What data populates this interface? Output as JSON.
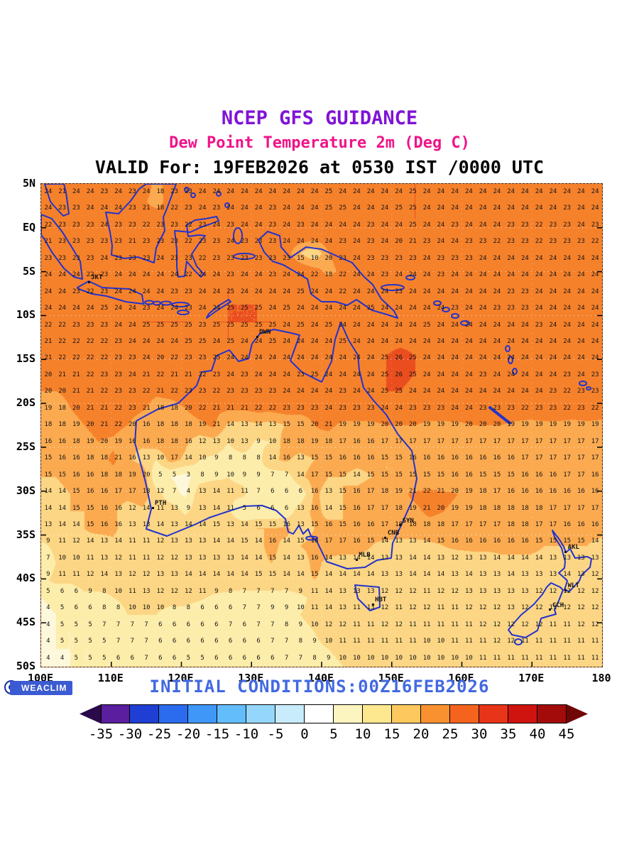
{
  "header": {
    "title": "NCEP GFS GUIDANCE",
    "subtitle": "Dew Point Temperature 2m (Deg C)",
    "valid_line": "VALID For: 19FEB2026 at 0530 IST /0000 UTC"
  },
  "footer": {
    "logo_text": "WEACLIM",
    "initial_conditions": "INITIAL CONDITIONS:00Z16FEB2026"
  },
  "colors": {
    "title": "#8013d6",
    "subtitle": "#f01389",
    "valid": "#000000",
    "initial_conditions": "#4169e1",
    "coast": "#2233cc",
    "numbers": "#151515",
    "logo_bg": "#3b5bd2",
    "logo_ring": "#16309a"
  },
  "axes": {
    "lat": [
      "5N",
      "EQ",
      "5S",
      "10S",
      "15S",
      "20S",
      "25S",
      "30S",
      "35S",
      "40S",
      "45S",
      "50S"
    ],
    "lon": [
      "100E",
      "110E",
      "120E",
      "130E",
      "140E",
      "150E",
      "160E",
      "170E",
      "180"
    ]
  },
  "cities": [
    {
      "code": "JKT",
      "lon": 106.8,
      "lat": -6.2
    },
    {
      "code": "DWN",
      "lon": 130.8,
      "lat": -12.4
    },
    {
      "code": "PTH",
      "lon": 115.9,
      "lat": -31.9
    },
    {
      "code": "SYN",
      "lon": 151.2,
      "lat": -33.9
    },
    {
      "code": "CNB",
      "lon": 149.1,
      "lat": -35.3
    },
    {
      "code": "MLB",
      "lon": 145.0,
      "lat": -37.8
    },
    {
      "code": "HBT",
      "lon": 147.3,
      "lat": -42.9
    },
    {
      "code": "AKL",
      "lon": 174.8,
      "lat": -36.9
    },
    {
      "code": "WLT",
      "lon": 174.8,
      "lat": -41.3
    },
    {
      "code": "CCH",
      "lon": 172.6,
      "lat": -43.5
    }
  ],
  "chart_data": {
    "type": "heatmap",
    "title": "Dew Point Temperature 2m (Deg C)",
    "units": "Deg C",
    "lon_range": [
      100,
      180
    ],
    "lat_range": [
      5,
      -50
    ],
    "grid_shape": [
      29,
      40
    ],
    "grid": [
      [
        24,
        21,
        24,
        24,
        23,
        24,
        23,
        24,
        18,
        23,
        23,
        24,
        24,
        24,
        24,
        24,
        24,
        24,
        24,
        24,
        25,
        24,
        24,
        24,
        24,
        24,
        25,
        24,
        24,
        24,
        24,
        24,
        24,
        24,
        24,
        24,
        24,
        24,
        24,
        24
      ],
      [
        24,
        23,
        23,
        24,
        24,
        24,
        23,
        21,
        18,
        22,
        23,
        24,
        23,
        24,
        24,
        24,
        23,
        24,
        24,
        24,
        25,
        25,
        24,
        24,
        24,
        25,
        25,
        24,
        24,
        24,
        24,
        24,
        24,
        24,
        24,
        24,
        24,
        23,
        24,
        24
      ],
      [
        22,
        23,
        23,
        23,
        24,
        23,
        23,
        22,
        23,
        23,
        22,
        23,
        24,
        23,
        24,
        24,
        23,
        24,
        23,
        24,
        24,
        24,
        24,
        23,
        24,
        24,
        25,
        24,
        24,
        23,
        24,
        24,
        24,
        23,
        23,
        22,
        23,
        23,
        24,
        23
      ],
      [
        21,
        23,
        23,
        23,
        23,
        23,
        21,
        23,
        23,
        23,
        22,
        23,
        23,
        24,
        23,
        23,
        23,
        24,
        24,
        24,
        24,
        23,
        24,
        23,
        24,
        20,
        21,
        23,
        24,
        24,
        23,
        23,
        22,
        23,
        23,
        22,
        23,
        23,
        23,
        22
      ],
      [
        23,
        23,
        23,
        23,
        24,
        23,
        23,
        23,
        24,
        23,
        23,
        22,
        23,
        23,
        23,
        23,
        23,
        23,
        15,
        10,
        20,
        23,
        24,
        23,
        23,
        23,
        23,
        24,
        23,
        23,
        23,
        24,
        24,
        24,
        24,
        24,
        24,
        24,
        24,
        24
      ],
      [
        24,
        24,
        24,
        22,
        23,
        24,
        24,
        24,
        24,
        24,
        22,
        24,
        24,
        23,
        24,
        24,
        23,
        24,
        24,
        22,
        18,
        22,
        24,
        24,
        23,
        24,
        24,
        24,
        23,
        24,
        24,
        24,
        24,
        24,
        24,
        24,
        24,
        24,
        24,
        24
      ],
      [
        24,
        24,
        23,
        22,
        23,
        24,
        24,
        24,
        24,
        23,
        23,
        24,
        24,
        25,
        24,
        24,
        24,
        24,
        25,
        24,
        24,
        22,
        24,
        24,
        24,
        23,
        24,
        24,
        24,
        24,
        24,
        24,
        24,
        23,
        23,
        24,
        24,
        24,
        24,
        24
      ],
      [
        24,
        24,
        24,
        24,
        25,
        24,
        24,
        23,
        24,
        24,
        23,
        24,
        24,
        25,
        25,
        25,
        24,
        25,
        24,
        24,
        24,
        24,
        24,
        25,
        24,
        24,
        24,
        24,
        24,
        23,
        24,
        24,
        23,
        23,
        23,
        24,
        24,
        24,
        24,
        24
      ],
      [
        22,
        22,
        23,
        23,
        23,
        24,
        24,
        25,
        25,
        25,
        25,
        23,
        25,
        25,
        25,
        25,
        25,
        24,
        25,
        24,
        25,
        24,
        24,
        24,
        24,
        24,
        24,
        25,
        24,
        24,
        24,
        24,
        24,
        24,
        24,
        23,
        24,
        24,
        24,
        24
      ],
      [
        21,
        22,
        22,
        22,
        22,
        23,
        24,
        24,
        24,
        24,
        25,
        25,
        24,
        25,
        24,
        24,
        25,
        24,
        24,
        24,
        24,
        25,
        24,
        24,
        24,
        24,
        24,
        24,
        24,
        24,
        24,
        24,
        24,
        24,
        24,
        24,
        24,
        24,
        24,
        24
      ],
      [
        21,
        22,
        22,
        22,
        22,
        23,
        23,
        24,
        20,
        22,
        23,
        23,
        25,
        24,
        24,
        24,
        24,
        24,
        24,
        24,
        24,
        24,
        24,
        24,
        25,
        26,
        25,
        24,
        24,
        24,
        24,
        24,
        24,
        24,
        24,
        24,
        24,
        24,
        24,
        24
      ],
      [
        20,
        21,
        21,
        22,
        23,
        23,
        24,
        21,
        22,
        21,
        21,
        22,
        23,
        24,
        23,
        24,
        24,
        24,
        23,
        25,
        24,
        24,
        24,
        24,
        25,
        26,
        25,
        24,
        24,
        24,
        24,
        23,
        24,
        24,
        24,
        24,
        24,
        23,
        24,
        23
      ],
      [
        20,
        20,
        21,
        21,
        22,
        23,
        23,
        22,
        21,
        22,
        23,
        23,
        22,
        23,
        23,
        23,
        23,
        24,
        24,
        24,
        24,
        23,
        24,
        24,
        25,
        25,
        24,
        24,
        24,
        24,
        24,
        24,
        24,
        24,
        24,
        24,
        23,
        22,
        23,
        23
      ],
      [
        19,
        18,
        20,
        21,
        21,
        22,
        23,
        21,
        18,
        18,
        20,
        22,
        21,
        21,
        21,
        22,
        22,
        23,
        23,
        23,
        24,
        23,
        23,
        23,
        24,
        24,
        23,
        23,
        23,
        24,
        24,
        23,
        23,
        23,
        22,
        23,
        23,
        22,
        23,
        22
      ],
      [
        18,
        18,
        19,
        20,
        21,
        22,
        20,
        16,
        18,
        18,
        18,
        19,
        21,
        14,
        13,
        14,
        13,
        15,
        15,
        20,
        21,
        19,
        19,
        19,
        20,
        20,
        20,
        19,
        19,
        19,
        20,
        20,
        20,
        19,
        19,
        19,
        19,
        19,
        19,
        19
      ],
      [
        16,
        16,
        18,
        19,
        20,
        19,
        16,
        16,
        18,
        18,
        16,
        12,
        13,
        10,
        13,
        9,
        10,
        18,
        18,
        19,
        18,
        17,
        16,
        16,
        17,
        17,
        17,
        17,
        17,
        17,
        17,
        17,
        17,
        17,
        17,
        17,
        17,
        17,
        17,
        17
      ],
      [
        15,
        16,
        16,
        18,
        18,
        21,
        16,
        13,
        10,
        17,
        14,
        10,
        9,
        8,
        8,
        8,
        14,
        16,
        13,
        15,
        15,
        16,
        16,
        16,
        15,
        15,
        16,
        16,
        16,
        16,
        16,
        16,
        16,
        16,
        17,
        17,
        17,
        17,
        17,
        17
      ],
      [
        15,
        15,
        16,
        16,
        18,
        18,
        19,
        20,
        5,
        5,
        3,
        8,
        9,
        10,
        9,
        9,
        7,
        7,
        14,
        17,
        15,
        15,
        14,
        15,
        15,
        15,
        15,
        15,
        15,
        16,
        16,
        15,
        15,
        15,
        16,
        16,
        16,
        17,
        17,
        16
      ],
      [
        14,
        14,
        15,
        16,
        16,
        17,
        17,
        18,
        12,
        7,
        4,
        13,
        14,
        11,
        11,
        7,
        6,
        6,
        6,
        16,
        13,
        15,
        16,
        17,
        18,
        19,
        21,
        22,
        21,
        20,
        19,
        18,
        17,
        16,
        16,
        16,
        16,
        16,
        16,
        16
      ],
      [
        14,
        14,
        15,
        15,
        16,
        16,
        12,
        14,
        11,
        13,
        9,
        13,
        14,
        11,
        5,
        6,
        6,
        6,
        13,
        16,
        14,
        15,
        16,
        17,
        17,
        18,
        19,
        21,
        20,
        19,
        19,
        18,
        18,
        18,
        18,
        18,
        17,
        17,
        17,
        17
      ],
      [
        13,
        14,
        14,
        15,
        16,
        16,
        13,
        13,
        14,
        13,
        14,
        14,
        15,
        13,
        14,
        15,
        15,
        16,
        13,
        15,
        16,
        15,
        16,
        16,
        17,
        18,
        18,
        18,
        18,
        17,
        17,
        17,
        17,
        18,
        18,
        17,
        17,
        16,
        16,
        16
      ],
      [
        9,
        11,
        12,
        14,
        13,
        14,
        11,
        11,
        12,
        13,
        13,
        13,
        14,
        14,
        15,
        14,
        16,
        14,
        15,
        16,
        17,
        17,
        16,
        15,
        14,
        13,
        13,
        14,
        15,
        16,
        16,
        16,
        16,
        16,
        16,
        15,
        15,
        15,
        15,
        14
      ],
      [
        7,
        10,
        10,
        11,
        13,
        12,
        11,
        11,
        12,
        12,
        13,
        13,
        13,
        13,
        14,
        14,
        15,
        14,
        13,
        16,
        14,
        13,
        14,
        14,
        13,
        13,
        14,
        14,
        13,
        12,
        13,
        13,
        14,
        14,
        14,
        14,
        13,
        13,
        13,
        13
      ],
      [
        9,
        11,
        11,
        12,
        14,
        13,
        12,
        12,
        13,
        13,
        14,
        14,
        14,
        14,
        14,
        15,
        15,
        14,
        14,
        15,
        14,
        14,
        14,
        14,
        13,
        13,
        14,
        14,
        14,
        13,
        14,
        13,
        13,
        14,
        13,
        13,
        13,
        14,
        13,
        12
      ],
      [
        5,
        6,
        6,
        9,
        8,
        10,
        11,
        13,
        12,
        12,
        12,
        11,
        9,
        8,
        7,
        7,
        7,
        7,
        9,
        11,
        14,
        13,
        13,
        13,
        12,
        12,
        12,
        11,
        12,
        12,
        13,
        13,
        13,
        13,
        13,
        12,
        12,
        12,
        12,
        12
      ],
      [
        4,
        5,
        6,
        6,
        8,
        8,
        10,
        10,
        10,
        8,
        8,
        6,
        6,
        6,
        7,
        7,
        9,
        9,
        10,
        11,
        14,
        13,
        11,
        13,
        12,
        11,
        12,
        12,
        11,
        11,
        12,
        12,
        12,
        13,
        12,
        12,
        11,
        12,
        12,
        12
      ],
      [
        4,
        5,
        5,
        5,
        7,
        7,
        7,
        7,
        6,
        6,
        6,
        6,
        6,
        7,
        6,
        7,
        7,
        8,
        9,
        10,
        12,
        12,
        11,
        11,
        12,
        12,
        11,
        11,
        11,
        11,
        11,
        12,
        12,
        12,
        12,
        12,
        11,
        11,
        12,
        12
      ],
      [
        4,
        5,
        5,
        5,
        5,
        7,
        7,
        7,
        6,
        6,
        6,
        6,
        6,
        6,
        6,
        6,
        7,
        7,
        8,
        9,
        10,
        11,
        11,
        11,
        11,
        11,
        11,
        10,
        10,
        11,
        11,
        11,
        12,
        12,
        11,
        11,
        11,
        11,
        11,
        11
      ],
      [
        4,
        4,
        5,
        5,
        5,
        6,
        6,
        7,
        6,
        6,
        5,
        5,
        6,
        6,
        6,
        6,
        6,
        7,
        7,
        8,
        9,
        10,
        10,
        10,
        10,
        10,
        10,
        10,
        10,
        10,
        10,
        11,
        11,
        11,
        11,
        11,
        11,
        11,
        11,
        11
      ]
    ],
    "map_bands": [
      {
        "lt": 5,
        "color": "#fdf8dc"
      },
      {
        "lt": 10,
        "color": "#fdedaa"
      },
      {
        "lt": 15,
        "color": "#fcd684"
      },
      {
        "lt": 20,
        "color": "#fbaa50"
      },
      {
        "lt": 25,
        "color": "#f6812b"
      },
      {
        "lt": 30,
        "color": "#ea4e1f"
      },
      {
        "lt": 99,
        "color": "#d92313"
      }
    ],
    "colorbar": {
      "ticks": [
        -35,
        -30,
        -25,
        -20,
        -15,
        -10,
        -5,
        0,
        5,
        10,
        15,
        20,
        25,
        30,
        35,
        40,
        45
      ],
      "colors": [
        "#2a0a4a",
        "#5a1e9e",
        "#1f3fd4",
        "#2b6bee",
        "#3f97f7",
        "#63bdfa",
        "#95d7fc",
        "#c9ecfd",
        "#ffffff",
        "#fdf5c0",
        "#fde88f",
        "#fdc95f",
        "#fa9131",
        "#f4641f",
        "#e83418",
        "#cf1410",
        "#a30b0b",
        "#700606"
      ]
    }
  }
}
